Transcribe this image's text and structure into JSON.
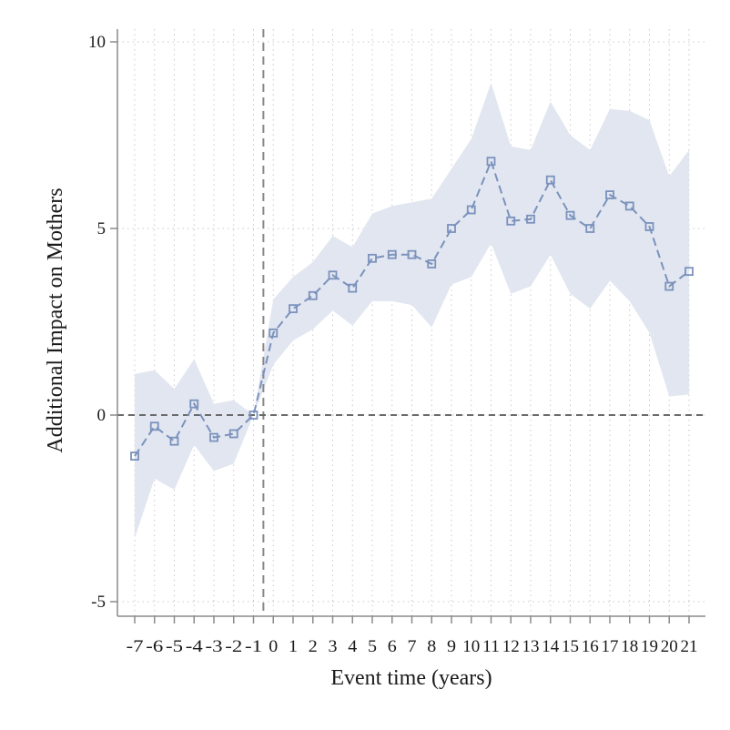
{
  "chart_data": {
    "type": "line",
    "title": "",
    "xlabel": "Event time (years)",
    "ylabel": "Additional Impact on Mothers",
    "xlim": [
      -7,
      21
    ],
    "ylim": [
      -5,
      10
    ],
    "x_ticks": [
      "-7",
      "-6",
      "-5",
      "-4",
      "-3",
      "-2",
      "-1",
      "0",
      "1",
      "2",
      "3",
      "4",
      "5",
      "6",
      "7",
      "8",
      "9",
      "10",
      "11",
      "12",
      "13",
      "14",
      "15",
      "16",
      "17",
      "18",
      "19",
      "20",
      "21"
    ],
    "y_ticks": [
      "-5",
      "0",
      "5",
      "10"
    ],
    "grid": "dotted",
    "reference_lines": {
      "x": -0.5,
      "y": 0
    },
    "series": [
      {
        "x": [
          -7,
          -6,
          -5,
          -4,
          -3,
          -2,
          -1,
          0,
          1,
          2,
          3,
          4,
          5,
          6,
          7,
          8,
          9,
          10,
          11,
          12,
          13,
          14,
          15,
          16,
          17,
          18,
          19,
          20,
          21
        ],
        "values": [
          -1.1,
          -0.3,
          -0.7,
          0.3,
          -0.6,
          -0.5,
          0.0,
          2.2,
          2.85,
          3.2,
          3.75,
          3.4,
          4.2,
          4.3,
          4.3,
          4.05,
          5.0,
          5.5,
          6.8,
          5.2,
          5.25,
          6.3,
          5.35,
          5.0,
          5.9,
          5.6,
          5.05,
          3.45,
          3.85
        ],
        "ci_upper": [
          1.1,
          1.2,
          0.7,
          1.5,
          0.3,
          0.4,
          0.0,
          3.1,
          3.7,
          4.1,
          4.8,
          4.5,
          5.4,
          5.6,
          5.7,
          5.8,
          6.6,
          7.4,
          8.9,
          7.2,
          7.1,
          8.4,
          7.5,
          7.1,
          8.2,
          8.15,
          7.9,
          6.4,
          7.1
        ],
        "ci_lower": [
          -3.3,
          -1.7,
          -2.0,
          -0.8,
          -1.5,
          -1.3,
          0.0,
          1.35,
          2.0,
          2.3,
          2.8,
          2.4,
          3.05,
          3.05,
          2.95,
          2.35,
          3.5,
          3.7,
          4.6,
          3.25,
          3.45,
          4.3,
          3.25,
          2.85,
          3.6,
          3.05,
          2.2,
          0.5,
          0.55
        ]
      }
    ]
  },
  "colors": {
    "line": "#7b92bd",
    "ci_band": "#e1e6f0",
    "axis": "#8a8a8a",
    "grid": "#c9c9c9",
    "reference": "#888888",
    "zero_line": "#6a6a6a"
  }
}
